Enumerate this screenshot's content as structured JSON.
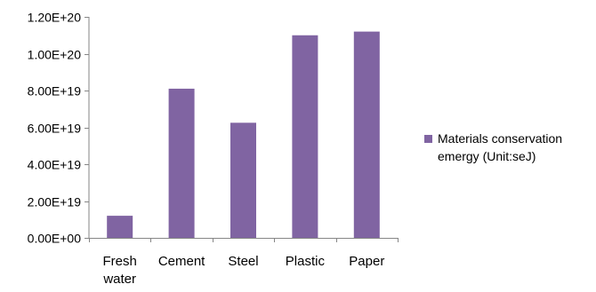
{
  "chart_data": {
    "type": "bar",
    "categories": [
      "Fresh water",
      "Cement",
      "Steel",
      "Plastic",
      "Paper"
    ],
    "category_lines": [
      [
        "Fresh",
        "water"
      ],
      [
        "Cement"
      ],
      [
        "Steel"
      ],
      [
        "Plastic"
      ],
      [
        "Paper"
      ]
    ],
    "series": [
      {
        "name": "Materials conservation emergy (Unit:seJ)",
        "color": "#8064A2",
        "values": [
          1.2e+19,
          8.1e+19,
          6.25e+19,
          1.1e+20,
          1.12e+20
        ]
      }
    ],
    "ylim": [
      0,
      1.2e+20
    ],
    "yticks": [
      0,
      2e+19,
      4e+19,
      6e+19,
      8e+19,
      1e+20,
      1.2e+20
    ],
    "ytick_labels": [
      "0.00E+00",
      "2.00E+19",
      "4.00E+19",
      "6.00E+19",
      "8.00E+19",
      "1.00E+20",
      "1.20E+20"
    ],
    "legend_position": "right",
    "grid": false,
    "axis_color": "#868686"
  }
}
